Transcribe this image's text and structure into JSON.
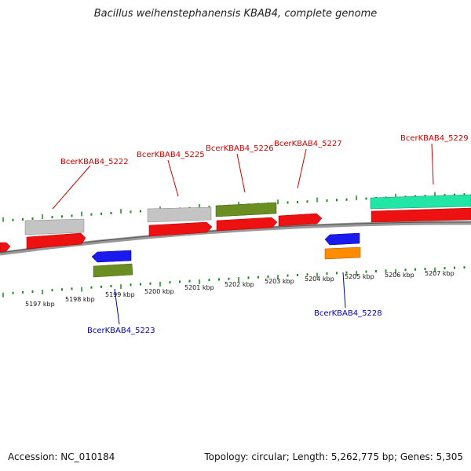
{
  "title": "Bacillus weihenstephanensis KBAB4, complete genome",
  "footer": {
    "accession": "Accession: NC_010184",
    "stats": "Topology: circular; Length: 5,262,775 bp; Genes: 5,305"
  },
  "colors": {
    "forward_label": "#cc0000",
    "reverse_label": "#0000aa",
    "tick": "#1a8a1a",
    "backbone": "#888888",
    "cds": "#ee1111",
    "gene_gray": "#bbbbbb",
    "gene_olive": "#6b8e23",
    "gene_blue": "#1a1aee",
    "gene_orange": "#ff8c00",
    "gene_teal": "#22e0a0"
  },
  "scale_labels": [
    "5197 kbp",
    "5198 kbp",
    "5199 kbp",
    "5200 kbp",
    "5201 kbp",
    "5202 kbp",
    "5203 kbp",
    "5204 kbp",
    "5205 kbp",
    "5206 kbp",
    "5207 kbp"
  ],
  "gene_labels": [
    {
      "text": "BcerKBAB4_5222",
      "strand": "forward"
    },
    {
      "text": "BcerKBAB4_5225",
      "strand": "forward"
    },
    {
      "text": "BcerKBAB4_5226",
      "strand": "forward"
    },
    {
      "text": "BcerKBAB4_5227",
      "strand": "forward"
    },
    {
      "text": "BcerKBAB4_5229",
      "strand": "forward"
    },
    {
      "text": "BcerKBAB4_5223",
      "strand": "reverse"
    },
    {
      "text": "BcerKBAB4_5228",
      "strand": "reverse"
    }
  ]
}
